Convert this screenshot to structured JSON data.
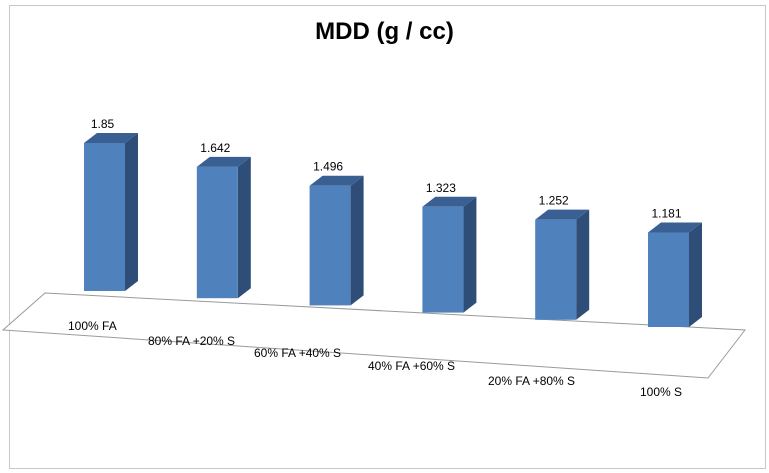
{
  "chart_data": {
    "type": "bar",
    "title": "MDD (g / cc)",
    "categories": [
      "100% FA",
      "80% FA +20% S",
      "60% FA +40% S",
      "40% FA +60% S",
      "20% FA +80% S",
      "100% S"
    ],
    "values": [
      1.85,
      1.642,
      1.496,
      1.323,
      1.252,
      1.181
    ],
    "value_labels": [
      "1.85",
      "1.642",
      "1.496",
      "1.323",
      "1.252",
      "1.181"
    ],
    "xlabel": "",
    "ylabel": "",
    "legend": "none",
    "grid": false,
    "style": "3d-column",
    "colors": {
      "front": "#4f81bd",
      "side": "#2e4d77",
      "top": "#3a5f92"
    }
  }
}
